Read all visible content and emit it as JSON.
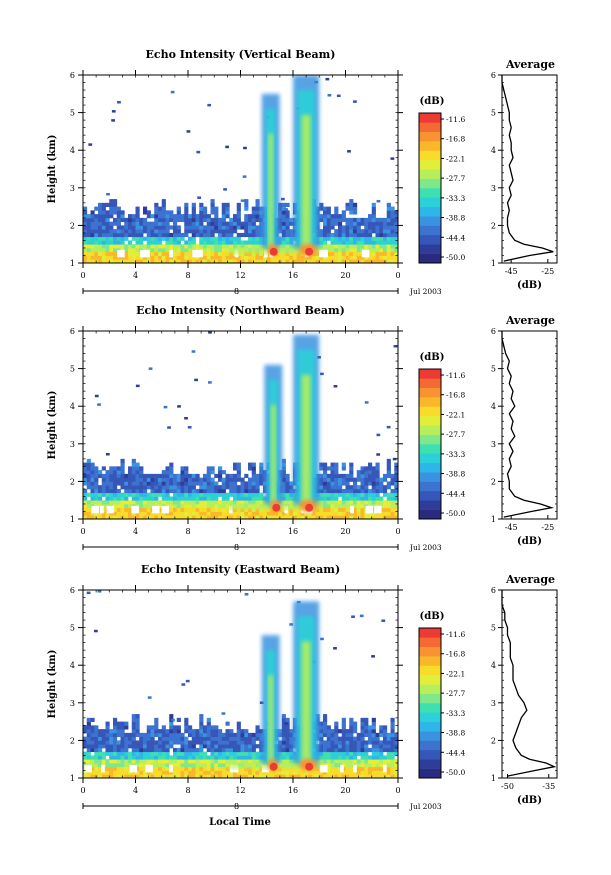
{
  "figure": {
    "xlabel": "Local Time",
    "shared_ylabel": "Height (km)",
    "x_ticks": [
      "0",
      "4",
      "8",
      "12",
      "16",
      "20",
      "0"
    ],
    "day_label": "8",
    "month_year": "Jul 2003",
    "colorbar_unit": "(dB)",
    "colorbar_levels": [
      "-11.6",
      "-16.8",
      "-22.1",
      "-27.7",
      "-33.3",
      "-38.8",
      "-44.4",
      "-50.0"
    ],
    "colors": [
      "#2a2b7e",
      "#2f3d9a",
      "#3656b8",
      "#3d73d0",
      "#3a93e0",
      "#2fb6e8",
      "#2bd0d8",
      "#3ee0b0",
      "#7ee88a",
      "#b6ee5c",
      "#e2ee3a",
      "#f7dc2a",
      "#f9b82a",
      "#f99230",
      "#f56a34",
      "#ee3a34"
    ],
    "profile_title": "Average",
    "profile_xlabel": "(dB)"
  },
  "chart_data": [
    {
      "type": "heatmap",
      "title": "Echo Intensity (Vertical Beam)",
      "xlabel": "Local Time",
      "ylabel": "Height (km)",
      "xlim": [
        0,
        24
      ],
      "ylim": [
        1,
        6
      ],
      "y_ticks": [
        "1",
        "2",
        "3",
        "4",
        "5",
        "6"
      ],
      "colorbar_unit": "(dB)",
      "color_range": [
        -50.0,
        -11.6
      ],
      "features": {
        "boundary_layer_top_km": 2.4,
        "convective_columns": [
          {
            "time_h": 14.3,
            "top_km": 5.5,
            "peak_db": -20
          },
          {
            "time_h": 17.0,
            "top_km": 6.0,
            "peak_db": -11.6
          }
        ]
      },
      "profile": {
        "title": "Average",
        "xlabel": "(dB)",
        "x_ticks": [
          "-45",
          "-25"
        ],
        "xlim": [
          -50,
          -20
        ],
        "height_km": [
          1.05,
          1.2,
          1.3,
          1.4,
          1.5,
          1.6,
          1.8,
          2.0,
          2.2,
          2.4,
          2.6,
          2.8,
          3.0,
          3.2,
          3.4,
          3.6,
          3.8,
          4.0,
          4.2,
          4.4,
          4.6,
          4.8,
          5.0,
          5.2,
          5.4,
          5.6,
          5.8,
          6.0
        ],
        "db": [
          -49,
          -35,
          -22,
          -28,
          -38,
          -43,
          -46,
          -47,
          -47,
          -46,
          -47,
          -45,
          -46,
          -44,
          -45,
          -46,
          -44,
          -45,
          -45,
          -46,
          -45,
          -46,
          -46,
          -47,
          -48,
          -49,
          -50,
          -50
        ]
      }
    },
    {
      "type": "heatmap",
      "title": "Echo Intensity (Northward Beam)",
      "xlabel": "Local Time",
      "ylabel": "Height (km)",
      "xlim": [
        0,
        24
      ],
      "ylim": [
        1,
        6
      ],
      "y_ticks": [
        "1",
        "2",
        "3",
        "4",
        "5",
        "6"
      ],
      "colorbar_unit": "(dB)",
      "color_range": [
        -50.0,
        -11.6
      ],
      "features": {
        "boundary_layer_top_km": 2.3,
        "convective_columns": [
          {
            "time_h": 14.5,
            "top_km": 5.1,
            "peak_db": -16
          },
          {
            "time_h": 17.0,
            "top_km": 5.9,
            "peak_db": -11.6
          }
        ]
      },
      "profile": {
        "title": "Average",
        "xlabel": "(dB)",
        "x_ticks": [
          "-45",
          "-25"
        ],
        "xlim": [
          -50,
          -20
        ],
        "height_km": [
          1.05,
          1.2,
          1.3,
          1.4,
          1.5,
          1.6,
          1.8,
          2.0,
          2.2,
          2.4,
          2.6,
          2.8,
          3.0,
          3.2,
          3.4,
          3.6,
          3.8,
          4.0,
          4.2,
          4.4,
          4.6,
          4.8,
          5.0,
          5.2,
          5.4,
          5.6,
          5.8,
          6.0
        ],
        "db": [
          -49,
          -34,
          -23,
          -29,
          -38,
          -43,
          -46,
          -46,
          -47,
          -45,
          -46,
          -44,
          -46,
          -43,
          -45,
          -44,
          -46,
          -43,
          -45,
          -44,
          -46,
          -45,
          -47,
          -46,
          -48,
          -49,
          -50,
          -50
        ]
      }
    },
    {
      "type": "heatmap",
      "title": "Echo Intensity (Eastward Beam)",
      "xlabel": "Local Time",
      "ylabel": "Height (km)",
      "xlim": [
        0,
        24
      ],
      "ylim": [
        1,
        6
      ],
      "y_ticks": [
        "1",
        "2",
        "3",
        "4",
        "5",
        "6"
      ],
      "colorbar_unit": "(dB)",
      "color_range": [
        -50.0,
        -11.6
      ],
      "features": {
        "boundary_layer_top_km": 2.4,
        "convective_columns": [
          {
            "time_h": 14.3,
            "top_km": 4.8,
            "peak_db": -18
          },
          {
            "time_h": 17.0,
            "top_km": 5.7,
            "peak_db": -11.6
          }
        ]
      },
      "profile": {
        "title": "Average",
        "xlabel": "(dB)",
        "x_ticks": [
          "-50",
          "-35"
        ],
        "xlim": [
          -52,
          -32
        ],
        "height_km": [
          1.05,
          1.2,
          1.3,
          1.4,
          1.5,
          1.6,
          1.8,
          2.0,
          2.2,
          2.4,
          2.6,
          2.8,
          3.0,
          3.2,
          3.4,
          3.6,
          3.8,
          4.0,
          4.2,
          4.4,
          4.6,
          4.8,
          5.0,
          5.2,
          5.4,
          5.6,
          5.8,
          6.0
        ],
        "db": [
          -50,
          -40,
          -33,
          -36,
          -42,
          -45,
          -47,
          -48,
          -47,
          -46,
          -45,
          -43,
          -44,
          -46,
          -47,
          -48,
          -48,
          -48,
          -49,
          -49,
          -49,
          -50,
          -50,
          -51,
          -51,
          -52,
          -52,
          -52
        ]
      }
    }
  ]
}
